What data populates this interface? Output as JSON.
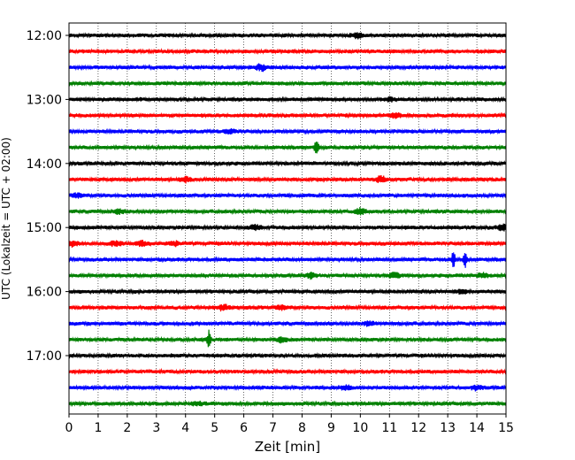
{
  "chart_data": {
    "type": "line",
    "title": "",
    "xlabel": "Zeit  [min]",
    "ylabel": "UTC (Lokalzeit = UTC + 02:00)",
    "xlim": [
      0,
      15
    ],
    "x_ticks": [
      "0",
      "1",
      "2",
      "3",
      "4",
      "5",
      "6",
      "7",
      "8",
      "9",
      "10",
      "11",
      "12",
      "13",
      "14",
      "15"
    ],
    "y_ticks": [
      "12:00",
      "13:00",
      "14:00",
      "15:00",
      "16:00",
      "17:00"
    ],
    "grid": "vertical dotted at each minute",
    "trace_colors": [
      "#000000",
      "#ff0000",
      "#0000ff",
      "#008000"
    ],
    "series": [
      {
        "start": "12:00",
        "events": [
          {
            "t": 9.9,
            "amp": 0.4
          }
        ]
      },
      {
        "start": "12:15",
        "events": []
      },
      {
        "start": "12:30",
        "events": [
          {
            "t": 6.6,
            "amp": 0.5
          }
        ]
      },
      {
        "start": "12:45",
        "events": []
      },
      {
        "start": "13:00",
        "events": [
          {
            "t": 11.0,
            "amp": 0.3
          }
        ]
      },
      {
        "start": "13:15",
        "events": [
          {
            "t": 11.2,
            "amp": 0.35
          }
        ]
      },
      {
        "start": "13:30",
        "events": [
          {
            "t": 5.5,
            "amp": 0.3
          }
        ]
      },
      {
        "start": "13:45",
        "events": [
          {
            "t": 8.5,
            "amp": 1.0
          }
        ]
      },
      {
        "start": "14:00",
        "events": []
      },
      {
        "start": "14:15",
        "events": [
          {
            "t": 10.7,
            "amp": 0.5
          },
          {
            "t": 4.0,
            "amp": 0.35
          }
        ]
      },
      {
        "start": "14:30",
        "events": [
          {
            "t": 0.3,
            "amp": 0.35
          }
        ]
      },
      {
        "start": "14:45",
        "events": [
          {
            "t": 10.0,
            "amp": 0.45
          },
          {
            "t": 1.7,
            "amp": 0.35
          }
        ]
      },
      {
        "start": "15:00",
        "events": [
          {
            "t": 6.4,
            "amp": 0.4
          },
          {
            "t": 14.9,
            "amp": 0.5
          }
        ]
      },
      {
        "start": "15:15",
        "events": [
          {
            "t": 0.1,
            "amp": 0.45
          },
          {
            "t": 1.6,
            "amp": 0.4
          },
          {
            "t": 2.5,
            "amp": 0.35
          },
          {
            "t": 3.6,
            "amp": 0.35
          }
        ]
      },
      {
        "start": "15:30",
        "events": [
          {
            "t": 13.2,
            "amp": 0.9
          },
          {
            "t": 13.6,
            "amp": 0.9
          }
        ]
      },
      {
        "start": "15:45",
        "events": [
          {
            "t": 8.3,
            "amp": 0.45
          },
          {
            "t": 11.2,
            "amp": 0.45
          },
          {
            "t": 14.2,
            "amp": 0.4
          }
        ]
      },
      {
        "start": "16:00",
        "events": [
          {
            "t": 13.5,
            "amp": 0.35
          }
        ]
      },
      {
        "start": "16:15",
        "events": [
          {
            "t": 5.3,
            "amp": 0.45
          },
          {
            "t": 7.3,
            "amp": 0.35
          }
        ]
      },
      {
        "start": "16:30",
        "events": [
          {
            "t": 10.3,
            "amp": 0.35
          }
        ]
      },
      {
        "start": "16:45",
        "events": [
          {
            "t": 4.8,
            "amp": 0.9
          },
          {
            "t": 7.3,
            "amp": 0.35
          }
        ]
      },
      {
        "start": "17:00",
        "events": []
      },
      {
        "start": "17:15",
        "events": []
      },
      {
        "start": "17:30",
        "events": [
          {
            "t": 9.5,
            "amp": 0.35
          },
          {
            "t": 14.0,
            "amp": 0.35
          }
        ]
      },
      {
        "start": "17:45",
        "events": [
          {
            "t": 4.4,
            "amp": 0.3
          }
        ]
      }
    ]
  }
}
